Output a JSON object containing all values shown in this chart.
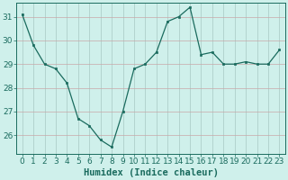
{
  "x": [
    0,
    1,
    2,
    3,
    4,
    5,
    6,
    7,
    8,
    9,
    10,
    11,
    12,
    13,
    14,
    15,
    16,
    17,
    18,
    19,
    20,
    21,
    22,
    23
  ],
  "y": [
    31.1,
    29.8,
    29.0,
    28.8,
    28.2,
    26.7,
    26.4,
    25.8,
    25.5,
    27.0,
    28.8,
    29.0,
    29.5,
    30.8,
    31.0,
    31.4,
    29.4,
    29.5,
    29.0,
    29.0,
    29.1,
    29.0,
    29.0,
    29.6
  ],
  "line_color": "#1a6b5e",
  "marker": "s",
  "marker_size": 2,
  "bg_color": "#cff0eb",
  "grid_color_major": "#b8d8d4",
  "grid_color_minor": "#daecea",
  "xlabel": "Humidex (Indice chaleur)",
  "xlabel_fontsize": 7.5,
  "tick_fontsize": 6.5,
  "ylim": [
    25.2,
    31.6
  ],
  "yticks": [
    26,
    27,
    28,
    29,
    30,
    31
  ],
  "xticks": [
    0,
    1,
    2,
    3,
    4,
    5,
    6,
    7,
    8,
    9,
    10,
    11,
    12,
    13,
    14,
    15,
    16,
    17,
    18,
    19,
    20,
    21,
    22,
    23
  ]
}
